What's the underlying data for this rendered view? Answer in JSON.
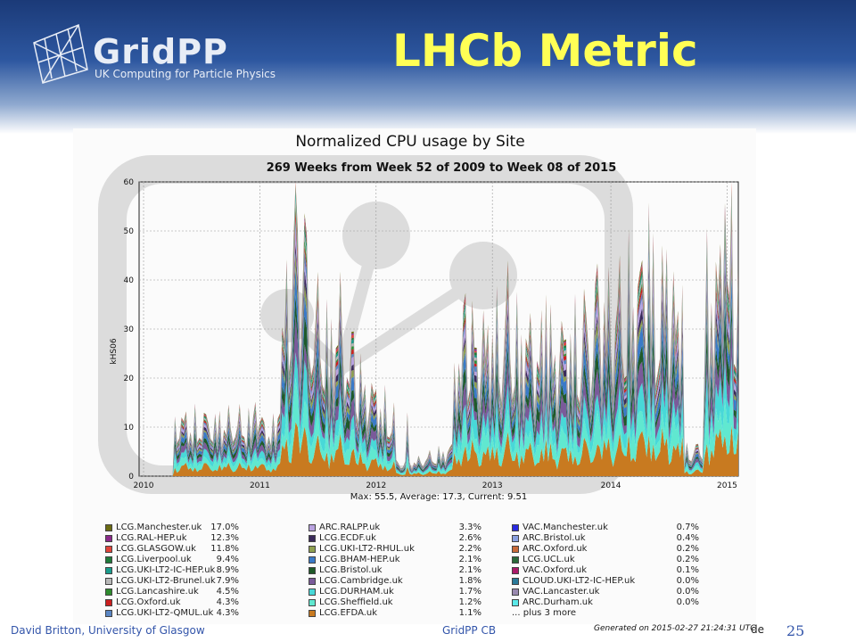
{
  "slide": {
    "logo_text": "GridPP",
    "logo_subtitle": "UK Computing for Particle Physics",
    "title": "LHCb Metric",
    "footer_author": "David Britton, University of Glasgow",
    "footer_center": "GridPP CB",
    "footer_de": "de",
    "page_number": "25"
  },
  "chart_data": {
    "type": "area",
    "title": "Normalized CPU usage by Site",
    "subtitle": "269 Weeks from Week 52 of 2009 to Week 08 of 2015",
    "ylabel": "kHS06",
    "xlabel": "",
    "x_ticks": [
      "2010",
      "2011",
      "2012",
      "2013",
      "2014",
      "2015"
    ],
    "y_ticks": [
      "0",
      "10",
      "20",
      "30",
      "40",
      "50",
      "60"
    ],
    "ylim": [
      0,
      60
    ],
    "grid": true,
    "stats_line": "Max: 55.5, Average: 17.3, Current: 9.51",
    "generated": "Generated on 2015-02-27 21:24:31 UTC",
    "weeks": 269,
    "weekly_total_peaks": [
      {
        "week": 52,
        "value": 14
      },
      {
        "week": 60,
        "value": 12
      },
      {
        "week": 66,
        "value": 40
      },
      {
        "week": 70,
        "value": 55.5
      },
      {
        "week": 74,
        "value": 48
      },
      {
        "week": 80,
        "value": 36
      },
      {
        "week": 90,
        "value": 37
      },
      {
        "week": 96,
        "value": 26
      },
      {
        "week": 120,
        "value": 12
      },
      {
        "week": 146,
        "value": 34
      },
      {
        "week": 165,
        "value": 38
      },
      {
        "week": 182,
        "value": 32
      },
      {
        "week": 205,
        "value": 40
      },
      {
        "week": 228,
        "value": 51
      },
      {
        "week": 236,
        "value": 42
      },
      {
        "week": 262,
        "value": 51
      },
      {
        "week": 265,
        "value": 55.5
      },
      {
        "week": 268,
        "value": 37
      }
    ],
    "legend": [
      {
        "name": "LCG.Manchester.uk",
        "pct": "17.0%",
        "color": "#6b6b12"
      },
      {
        "name": "LCG.RAL-HEP.uk",
        "pct": "12.3%",
        "color": "#8b2a8b"
      },
      {
        "name": "LCG.GLASGOW.uk",
        "pct": "11.8%",
        "color": "#e0443a"
      },
      {
        "name": "LCG.Liverpool.uk",
        "pct": "9.4%",
        "color": "#1f7a3a"
      },
      {
        "name": "LCG.UKI-LT2-IC-HEP.uk",
        "pct": "8.9%",
        "color": "#1a9c8c"
      },
      {
        "name": "LCG.UKI-LT2-Brunel.uk",
        "pct": "7.9%",
        "color": "#b8b8b8"
      },
      {
        "name": "LCG.Lancashire.uk",
        "pct": "4.5%",
        "color": "#2e8b2e"
      },
      {
        "name": "LCG.Oxford.uk",
        "pct": "4.3%",
        "color": "#cc1f1f"
      },
      {
        "name": "LCG.UKI-LT2-QMUL.uk",
        "pct": "4.3%",
        "color": "#5a86c4"
      },
      {
        "name": "ARC.RALPP.uk",
        "pct": "3.3%",
        "color": "#b9a2e0"
      },
      {
        "name": "LCG.ECDF.uk",
        "pct": "2.6%",
        "color": "#3a2a5a"
      },
      {
        "name": "LCG.UKI-LT2-RHUL.uk",
        "pct": "2.2%",
        "color": "#8fa050"
      },
      {
        "name": "LCG.BHAM-HEP.uk",
        "pct": "2.1%",
        "color": "#3a7ac8"
      },
      {
        "name": "LCG.Bristol.uk",
        "pct": "2.1%",
        "color": "#1f5a2a"
      },
      {
        "name": "LCG.Cambridge.uk",
        "pct": "1.8%",
        "color": "#7a5a9a"
      },
      {
        "name": "LCG.DURHAM.uk",
        "pct": "1.7%",
        "color": "#48d8d8"
      },
      {
        "name": "LCG.Sheffield.uk",
        "pct": "1.2%",
        "color": "#60e8d0"
      },
      {
        "name": "LCG.EFDA.uk",
        "pct": "1.1%",
        "color": "#c87a20"
      },
      {
        "name": "VAC.Manchester.uk",
        "pct": "0.7%",
        "color": "#2a2ae0"
      },
      {
        "name": "ARC.Bristol.uk",
        "pct": "0.4%",
        "color": "#8aa0e0"
      },
      {
        "name": "ARC.Oxford.uk",
        "pct": "0.2%",
        "color": "#c86a3a"
      },
      {
        "name": "LCG.UCL.uk",
        "pct": "0.2%",
        "color": "#2a6a3a"
      },
      {
        "name": "VAC.Oxford.uk",
        "pct": "0.1%",
        "color": "#aa1a6a"
      },
      {
        "name": "CLOUD.UKI-LT2-IC-HEP.uk",
        "pct": "0.0%",
        "color": "#2a7a9a"
      },
      {
        "name": "VAC.Lancaster.uk",
        "pct": "0.0%",
        "color": "#9a8ab0"
      },
      {
        "name": "ARC.Durham.uk",
        "pct": "0.0%",
        "color": "#5ae8e8"
      }
    ],
    "legend_more": "... plus 3 more"
  }
}
